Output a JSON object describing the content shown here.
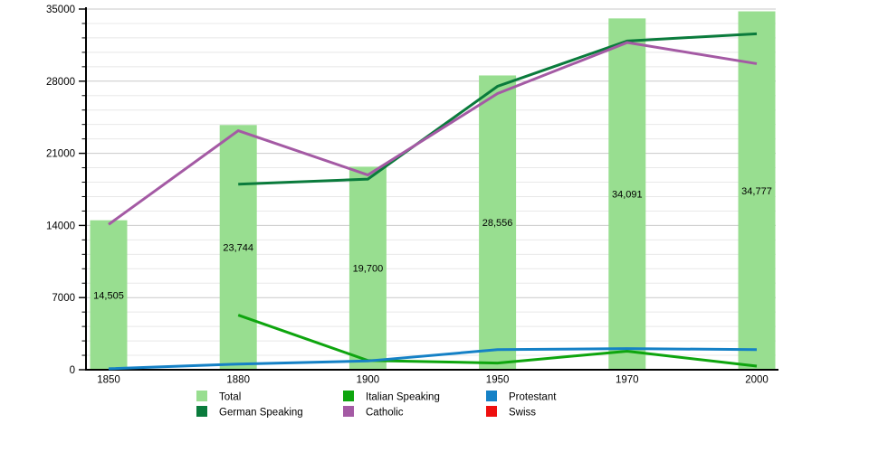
{
  "chart_data": {
    "type": "bar+line",
    "x_categories": [
      "1850",
      "1880",
      "1900",
      "1950",
      "1970",
      "2000"
    ],
    "bars": {
      "name": "Total",
      "color": "#98DE90",
      "values": [
        14505,
        23744,
        19700,
        28556,
        34091,
        34777
      ],
      "labels": [
        "14,505",
        "23,744",
        "19,700",
        "28,556",
        "34,091",
        "34,777"
      ]
    },
    "lines": [
      {
        "name": "German Speaking",
        "color": "#0A7B3C",
        "values": [
          null,
          18000,
          18500,
          27500,
          31900,
          32600
        ]
      },
      {
        "name": "Italian Speaking",
        "color": "#0EA50E",
        "values": [
          null,
          5300,
          900,
          650,
          1800,
          350
        ]
      },
      {
        "name": "Catholic",
        "color": "#A45AA4",
        "values": [
          14100,
          23200,
          18900,
          26800,
          31750,
          29700
        ]
      },
      {
        "name": "Protestant",
        "color": "#1581C6",
        "values": [
          100,
          550,
          850,
          1950,
          2050,
          1950
        ]
      },
      {
        "name": "Swiss",
        "color": "#EE0F0F",
        "values": [
          null,
          null,
          null,
          null,
          null,
          null
        ]
      }
    ],
    "y_axis": {
      "min": 0,
      "max": 35000,
      "major_step": 7000,
      "minor_step": 1400,
      "tick_labels": [
        "0",
        "7000",
        "14000",
        "21000",
        "28000",
        "35000"
      ]
    },
    "grid": {
      "major_color": "#C9C9C9",
      "minor_color": "#E8E8E8",
      "axis_color": "#000000"
    },
    "legend": {
      "position": "bottom",
      "items": [
        {
          "label": "Total",
          "color": "#98DE90"
        },
        {
          "label": "Italian Speaking",
          "color": "#0EA50E"
        },
        {
          "label": "Protestant",
          "color": "#1581C6"
        },
        {
          "label": "German Speaking",
          "color": "#0A7B3C"
        },
        {
          "label": "Catholic",
          "color": "#A45AA4"
        },
        {
          "label": "Swiss",
          "color": "#EE0F0F"
        }
      ]
    }
  }
}
